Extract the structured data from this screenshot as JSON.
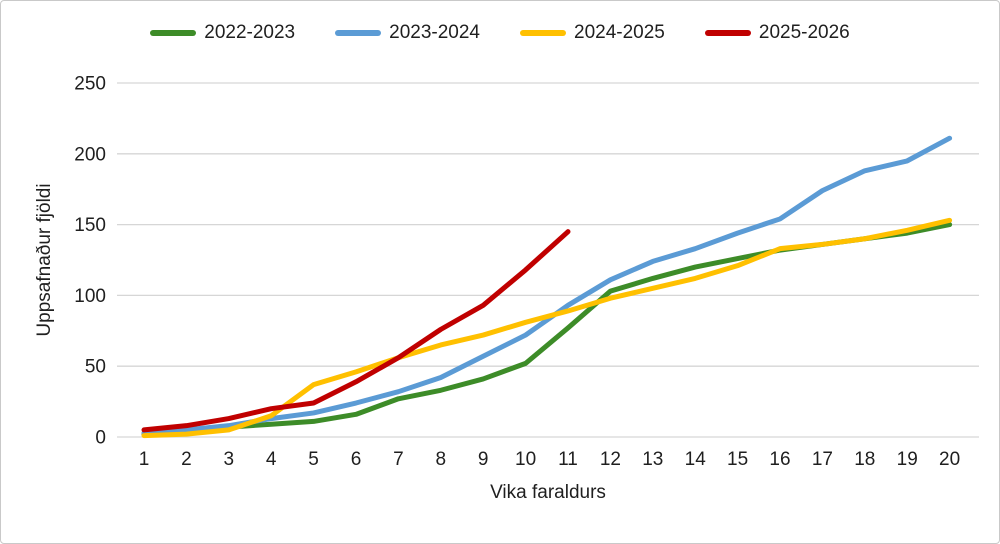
{
  "chart_data": {
    "type": "line",
    "title": "",
    "xlabel": "Vika faraldurs",
    "ylabel": "Uppsafnaður fjöldi",
    "x": [
      1,
      2,
      3,
      4,
      5,
      6,
      7,
      8,
      9,
      10,
      11,
      12,
      13,
      14,
      15,
      16,
      17,
      18,
      19,
      20
    ],
    "ylim": [
      0,
      250
    ],
    "yticks": [
      0,
      50,
      100,
      150,
      200,
      250
    ],
    "grid": true,
    "legend_position": "top",
    "series": [
      {
        "name": "2022-2023",
        "color": "#3d8c28",
        "values": [
          2,
          4,
          7,
          9,
          11,
          16,
          27,
          33,
          41,
          52,
          77,
          103,
          112,
          120,
          126,
          132,
          136,
          140,
          144,
          150
        ]
      },
      {
        "name": "2023-2024",
        "color": "#5b9bd5",
        "values": [
          3,
          5,
          8,
          13,
          17,
          24,
          32,
          42,
          57,
          72,
          93,
          111,
          124,
          133,
          144,
          154,
          174,
          188,
          195,
          211
        ]
      },
      {
        "name": "2024-2025",
        "color": "#ffc000",
        "values": [
          1,
          2,
          5,
          15,
          37,
          46,
          56,
          65,
          72,
          81,
          89,
          98,
          105,
          112,
          121,
          133,
          136,
          140,
          146,
          153
        ]
      },
      {
        "name": "2025-2026",
        "color": "#c00000",
        "values": [
          5,
          8,
          13,
          20,
          24,
          39,
          56,
          76,
          93,
          118,
          145
        ]
      }
    ]
  },
  "colors": {
    "grid": "#d6d6d6",
    "text": "#1f1f1f",
    "border": "#c9c9c9",
    "background": "#ffffff"
  }
}
